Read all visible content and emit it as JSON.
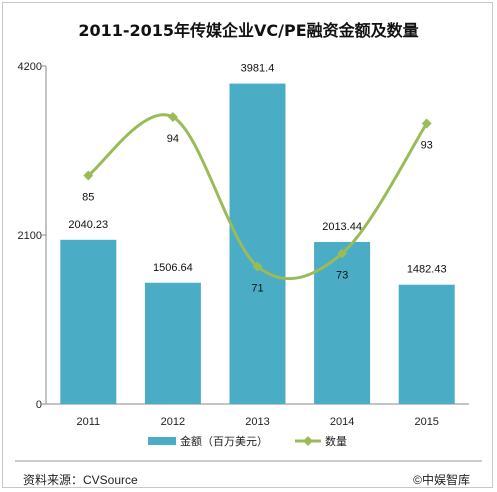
{
  "chart_data": {
    "type": "bar",
    "title": "2011-2015年传媒企业VC/PE融资金额及数量",
    "categories": [
      "2011",
      "2012",
      "2013",
      "2014",
      "2015"
    ],
    "ylim": [
      0,
      4200
    ],
    "yticks": [
      "0",
      "2100",
      "4200"
    ],
    "grid": false,
    "legend_position": "bottom",
    "series": [
      {
        "name": "金额（百万美元）",
        "kind": "bar",
        "color": "#4bacc6",
        "values": [
          2040.23,
          1506.64,
          3981.4,
          2013.44,
          1482.43
        ],
        "labels": [
          "2040.23",
          "1506.64",
          "3981.4",
          "2013.44",
          "1482.43"
        ]
      },
      {
        "name": "数量",
        "kind": "line",
        "color": "#9bbb59",
        "values": [
          85,
          94,
          71,
          73,
          93
        ],
        "labels": [
          "85",
          "94",
          "71",
          "73",
          "93"
        ]
      }
    ]
  },
  "footer": {
    "source": "资料来源：CVSource",
    "copyright": "©中娱智库"
  }
}
